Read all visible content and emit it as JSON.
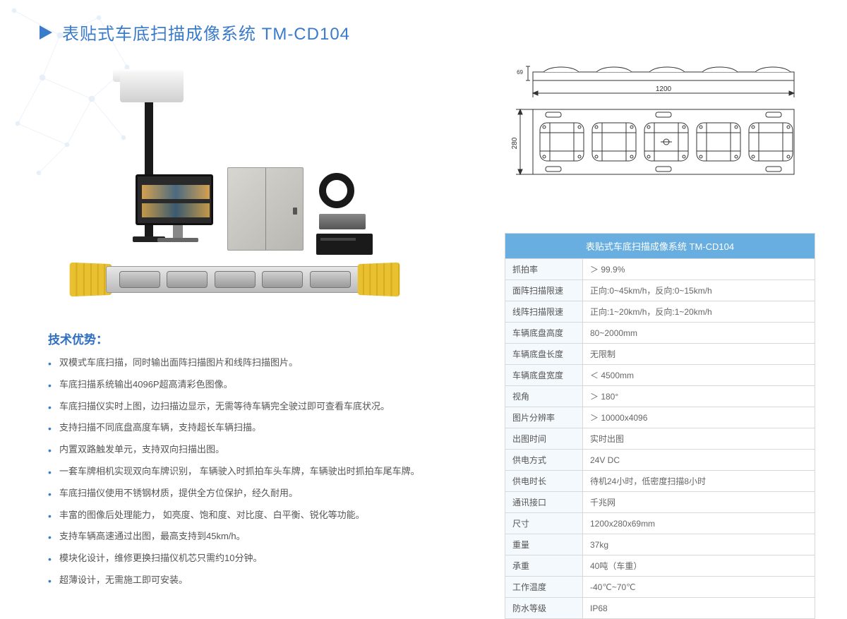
{
  "colors": {
    "primary": "#3a7bca",
    "table_header": "#68aee0",
    "text": "#555",
    "label_bg": "#f4f9fd",
    "border": "#d8d8d8"
  },
  "header": {
    "title": "表贴式车底扫描成像系统  TM-CD104"
  },
  "features": {
    "title": "技术优势：",
    "items": [
      "双模式车底扫描，同时输出面阵扫描图片和线阵扫描图片。",
      "车底扫描系统输出4096P超高清彩色图像。",
      "车底扫描仪实时上图，边扫描边显示，无需等待车辆完全驶过即可查看车底状况。",
      "支持扫描不同底盘高度车辆，支持超长车辆扫描。",
      "内置双路触发单元，支持双向扫描出图。",
      "一套车牌相机实现双向车牌识别，  车辆驶入时抓拍车头车牌，车辆驶出时抓拍车尾车牌。",
      "车底扫描仪使用不锈钢材质，提供全方位保护，经久耐用。",
      "丰富的图像后处理能力，  如亮度、饱和度、对比度、白平衡、锐化等功能。",
      "支持车辆高速通过出图，最高支持到45km/h。",
      "模块化设计，维修更换扫描仪机芯只需约10分钟。",
      "超薄设计，无需施工即可安装。"
    ]
  },
  "drawing": {
    "width_label": "1200",
    "height_label": "280",
    "top_height_label": "69"
  },
  "spec_table": {
    "title": "表贴式车底扫描成像系统  TM-CD104",
    "rows": [
      [
        "抓拍率",
        "＞ 99.9%"
      ],
      [
        "面阵扫描限速",
        "正向:0~45km/h，反向:0~15km/h"
      ],
      [
        "线阵扫描限速",
        "正向:1~20km/h，反向:1~20km/h"
      ],
      [
        "车辆底盘高度",
        "80~2000mm"
      ],
      [
        "车辆底盘长度",
        "无限制"
      ],
      [
        "车辆底盘宽度",
        "＜ 4500mm"
      ],
      [
        "视角",
        "＞ 180°"
      ],
      [
        "图片分辨率",
        "＞ 10000x4096"
      ],
      [
        "出图时间",
        "实时出图"
      ],
      [
        "供电方式",
        "24V DC"
      ],
      [
        "供电时长",
        "待机24小时，低密度扫描8小时"
      ],
      [
        "通讯接口",
        "千兆网"
      ],
      [
        "尺寸",
        "1200x280x69mm"
      ],
      [
        "重量",
        "37kg"
      ],
      [
        "承重",
        "40吨（车重）"
      ],
      [
        "工作温度",
        "-40℃~70℃"
      ],
      [
        "防水等级",
        "IP68"
      ]
    ]
  }
}
